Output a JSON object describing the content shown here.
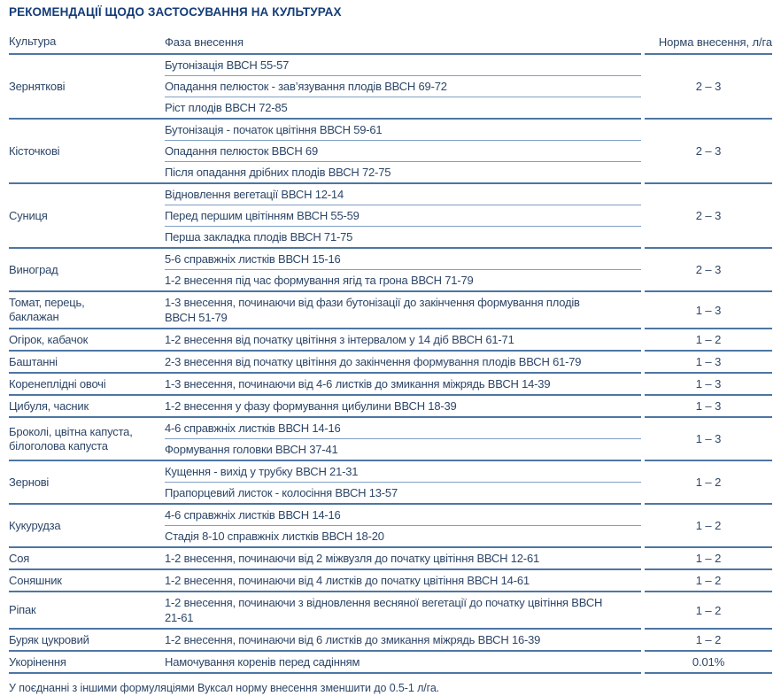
{
  "title": "РЕКОМЕНДАЦІЇ ЩОДО ЗАСТОСУВАННЯ НА КУЛЬТУРАХ",
  "table": {
    "headers": {
      "culture": "Культура",
      "phase": "Фаза внесення",
      "rate": "Норма внесення, л/га"
    },
    "groups": [
      {
        "culture": "Зерняткові",
        "phases": [
          "Бутонізація ВВСН 55-57",
          "Опадання пелюсток - зав’язування плодів ВВСН 69-72",
          "Ріст плодів ВВСН 72-85"
        ],
        "rate": "2 – 3"
      },
      {
        "culture": "Кісточкові",
        "phases": [
          "Бутонізація - початок цвітіння ВВСН 59-61",
          "Опадання пелюсток ВВСН 69",
          "Після опадання дрібних плодів ВВСН 72-75"
        ],
        "rate": "2 – 3"
      },
      {
        "culture": "Суниця",
        "phases": [
          "Відновлення вегетації ВВСН 12-14",
          "Перед першим цвітінням ВВСН 55-59",
          "Перша закладка плодів ВВСН 71-75"
        ],
        "rate": "2 – 3"
      },
      {
        "culture": "Виноград",
        "phases": [
          "5-6 справжніх листків ВВСН 15-16",
          "1-2 внесення під час формування ягід та грона ВВСН 71-79"
        ],
        "rate": "2 – 3"
      },
      {
        "culture": "Томат, перець,\nбаклажан",
        "phases": [
          "1-3 внесення, починаючи від фази бутонізації до закінчення формування плодів ВВСН 51-79"
        ],
        "rate": "1 – 3"
      },
      {
        "culture": "Огірок, кабачок",
        "phases": [
          "1-2 внесення від початку цвітіння з інтервалом у 14 діб ВВСН 61-71"
        ],
        "rate": "1 – 2"
      },
      {
        "culture": "Баштанні",
        "phases": [
          "2-3 внесення від початку цвітіння до закінчення формування плодів ВВСН 61-79"
        ],
        "rate": "1 – 3"
      },
      {
        "culture": "Коренеплідні овочі",
        "phases": [
          "1-3 внесення, починаючи від 4-6 листків до змикання міжрядь ВВСН 14-39"
        ],
        "rate": "1 – 3"
      },
      {
        "culture": "Цибуля, часник",
        "phases": [
          "1-2 внесення у фазу формування цибулини ВВСН 18-39"
        ],
        "rate": "1 – 3"
      },
      {
        "culture": "Броколі, цвітна капуста,\nбілоголова капуста",
        "phases": [
          "4-6 справжніх листків ВВСН 14-16",
          "Формування головки ВВСН 37-41"
        ],
        "rate": "1 – 3"
      },
      {
        "culture": "Зернові",
        "phases": [
          "Кущення - вихід у трубку ВВСН 21-31",
          "Прапорцевий листок - колосіння ВВСН 13-57"
        ],
        "rate": "1 – 2"
      },
      {
        "culture": "Кукурудза",
        "phases": [
          "4-6 справжніх листків ВВСН 14-16",
          "Стадія 8-10 справжніх листків ВВСН 18-20"
        ],
        "rate": "1 – 2"
      },
      {
        "culture": "Соя",
        "phases": [
          "1-2 внесення, починаючи від 2 міжвузля до початку цвітіння ВВСН 12-61"
        ],
        "rate": "1 – 2"
      },
      {
        "culture": "Соняшник",
        "phases": [
          "1-2 внесення, починаючи від 4 листків до початку цвітіння ВВСН 14-61"
        ],
        "rate": "1 – 2"
      },
      {
        "culture": "Ріпак",
        "phases": [
          "1-2 внесення, починаючи з відновлення весняної вегетації до початку цвітіння ВВСН 21-61"
        ],
        "rate": "1 – 2"
      },
      {
        "culture": "Буряк цукровий",
        "phases": [
          "1-2 внесення, починаючи від 6 листків до змикання міжрядь ВВСН 16-39"
        ],
        "rate": "1 – 2"
      },
      {
        "culture": "Укорінення",
        "phases": [
          "Намочування коренів перед садінням"
        ],
        "rate": "0.01%"
      }
    ]
  },
  "footnote": "У поєднанні з іншими формуляціями Вуксал норму внесення зменшити до 0.5-1 л/га.",
  "colors": {
    "title": "#143c78",
    "body_text": "#2d4668",
    "group_line": "#4d76a3",
    "inner_line": "#7f9fc2"
  }
}
